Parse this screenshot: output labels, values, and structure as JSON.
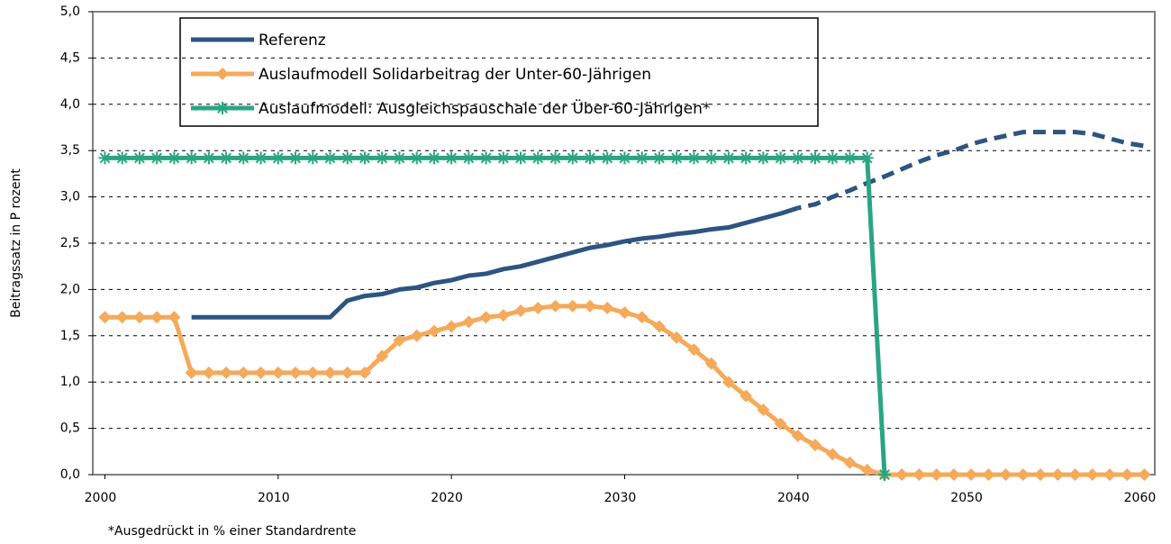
{
  "chart_data": {
    "type": "line",
    "y_label": "Beitragssatz in P rozent",
    "footnote": "*Ausgedrückt in % einer Standardrente",
    "x": [
      2000,
      2001,
      2002,
      2003,
      2004,
      2005,
      2006,
      2007,
      2008,
      2009,
      2010,
      2011,
      2012,
      2013,
      2014,
      2015,
      2016,
      2017,
      2018,
      2019,
      2020,
      2021,
      2022,
      2023,
      2024,
      2025,
      2026,
      2027,
      2028,
      2029,
      2030,
      2031,
      2032,
      2033,
      2034,
      2035,
      2036,
      2037,
      2038,
      2039,
      2040,
      2041,
      2042,
      2043,
      2044,
      2045,
      2046,
      2047,
      2048,
      2049,
      2050,
      2051,
      2052,
      2053,
      2054,
      2055,
      2056,
      2057,
      2058,
      2059,
      2060
    ],
    "series": [
      {
        "name": "Referenz",
        "color": "#2e5480",
        "marker": "none",
        "dash_from": 2040,
        "values": [
          null,
          null,
          null,
          null,
          null,
          1.7,
          1.7,
          1.7,
          1.7,
          1.7,
          1.7,
          1.7,
          1.7,
          1.7,
          1.88,
          1.93,
          1.95,
          2.0,
          2.02,
          2.07,
          2.1,
          2.15,
          2.17,
          2.22,
          2.25,
          2.3,
          2.35,
          2.4,
          2.45,
          2.48,
          2.52,
          2.55,
          2.57,
          2.6,
          2.62,
          2.65,
          2.67,
          2.72,
          2.77,
          2.82,
          2.88,
          2.92,
          3.0,
          3.07,
          3.15,
          3.22,
          3.3,
          3.38,
          3.45,
          3.5,
          3.57,
          3.62,
          3.66,
          3.7,
          3.7,
          3.7,
          3.7,
          3.68,
          3.63,
          3.58,
          3.55
        ]
      },
      {
        "name": "Auslaufmodell Solidarbeitrag der Unter-60-Jährigen",
        "color": "#f5a95a",
        "marker": "diamond",
        "values": [
          1.7,
          1.7,
          1.7,
          1.7,
          1.7,
          1.1,
          1.1,
          1.1,
          1.1,
          1.1,
          1.1,
          1.1,
          1.1,
          1.1,
          1.1,
          1.1,
          1.28,
          1.45,
          1.5,
          1.55,
          1.6,
          1.65,
          1.7,
          1.72,
          1.77,
          1.8,
          1.82,
          1.82,
          1.82,
          1.8,
          1.75,
          1.7,
          1.6,
          1.48,
          1.35,
          1.2,
          1.0,
          0.85,
          0.7,
          0.55,
          0.42,
          0.32,
          0.22,
          0.13,
          0.05,
          0,
          0,
          0,
          0,
          0,
          0,
          0,
          0,
          0,
          0,
          0,
          0,
          0,
          0,
          0,
          0
        ]
      },
      {
        "name": "Auslaufmodell: Ausgleichspauschale der Über-60-Jährigen*",
        "color": "#2aa583",
        "marker": "asterisk",
        "values": [
          3.42,
          3.42,
          3.42,
          3.42,
          3.42,
          3.42,
          3.42,
          3.42,
          3.42,
          3.42,
          3.42,
          3.42,
          3.42,
          3.42,
          3.42,
          3.42,
          3.42,
          3.42,
          3.42,
          3.42,
          3.42,
          3.42,
          3.42,
          3.42,
          3.42,
          3.42,
          3.42,
          3.42,
          3.42,
          3.42,
          3.42,
          3.42,
          3.42,
          3.42,
          3.42,
          3.42,
          3.42,
          3.42,
          3.42,
          3.42,
          3.42,
          3.42,
          3.42,
          3.42,
          3.42,
          0,
          null,
          null,
          null,
          null,
          null,
          null,
          null,
          null,
          null,
          null,
          null,
          null,
          null,
          null,
          null
        ]
      }
    ],
    "xlim": [
      1999.3,
      2060.6
    ],
    "xticks": [
      2000,
      2010,
      2020,
      2030,
      2040,
      2050,
      2060
    ],
    "ylim": [
      0,
      5
    ],
    "yticks": [
      {
        "value": 0,
        "label": "0,0"
      },
      {
        "value": 0.5,
        "label": "0,5"
      },
      {
        "value": 1,
        "label": "1,0"
      },
      {
        "value": 1.5,
        "label": "1,5"
      },
      {
        "value": 2,
        "label": "2,0"
      },
      {
        "value": 2.5,
        "label": "2,5"
      },
      {
        "value": 3,
        "label": "3,0"
      },
      {
        "value": 3.5,
        "label": "3,5"
      },
      {
        "value": 4,
        "label": "4,0"
      },
      {
        "value": 4.5,
        "label": "4,5"
      },
      {
        "value": 5,
        "label": "5,0"
      }
    ],
    "grid": true
  }
}
